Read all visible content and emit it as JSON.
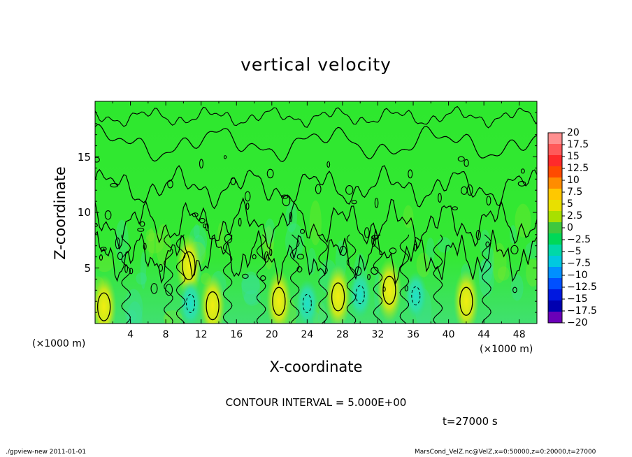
{
  "chart_data": {
    "type": "heatmap",
    "title": "vertical velocity",
    "xlabel": "X-coordinate",
    "ylabel": "Z-coordinate",
    "x_unit_left": "(×1000 m)",
    "x_unit_right": "(×1000 m)",
    "xlim": [
      0,
      50
    ],
    "ylim": [
      0,
      20
    ],
    "x_ticks": [
      "4",
      "8",
      "12",
      "16",
      "20",
      "24",
      "28",
      "32",
      "36",
      "40",
      "44",
      "48"
    ],
    "y_ticks": [
      "5",
      "10",
      "15"
    ],
    "colorbar": {
      "labels": [
        "20",
        "17.5",
        "15",
        "12.5",
        "10",
        "7.5",
        "5",
        "2.5",
        "0",
        "−2.5",
        "−5",
        "−7.5",
        "−10",
        "−12.5",
        "−15",
        "−17.5",
        "−20"
      ],
      "colors": [
        "#ff9090",
        "#ff5a5a",
        "#ff2a2a",
        "#ff4a00",
        "#ff8c00",
        "#ffc800",
        "#e8e000",
        "#a8e000",
        "#3ec83e",
        "#00d858",
        "#00d8a8",
        "#00c8e0",
        "#0090ff",
        "#0050ff",
        "#0018e0",
        "#0000b0",
        "#6a00b8"
      ]
    },
    "background_color": "#2ee82e",
    "updrafts": [
      {
        "x": 1.0,
        "z": 1.5,
        "w": 5
      },
      {
        "x": 10.6,
        "z": 5.2,
        "w": 5
      },
      {
        "x": 13.3,
        "z": 1.6,
        "w": 5
      },
      {
        "x": 20.8,
        "z": 2.0,
        "w": 5
      },
      {
        "x": 27.5,
        "z": 2.4,
        "w": 5
      },
      {
        "x": 33.3,
        "z": 3.0,
        "w": 5
      },
      {
        "x": 42.0,
        "z": 2.0,
        "w": 5
      }
    ],
    "downdrafts": [
      {
        "x": 10.8,
        "z": 1.8,
        "w": -5
      },
      {
        "x": 24.0,
        "z": 1.8,
        "w": -5
      },
      {
        "x": 30.0,
        "z": 2.6,
        "w": -5
      },
      {
        "x": 36.3,
        "z": 2.5,
        "w": -5
      }
    ]
  },
  "contour_interval": "CONTOUR INTERVAL = 5.000E+00",
  "time_label": "t=27000 s",
  "footer_left": "./gpview-new   2011-01-01",
  "footer_right": "MarsCond_VelZ.nc@VelZ,x=0:50000,z=0:20000,t=27000"
}
